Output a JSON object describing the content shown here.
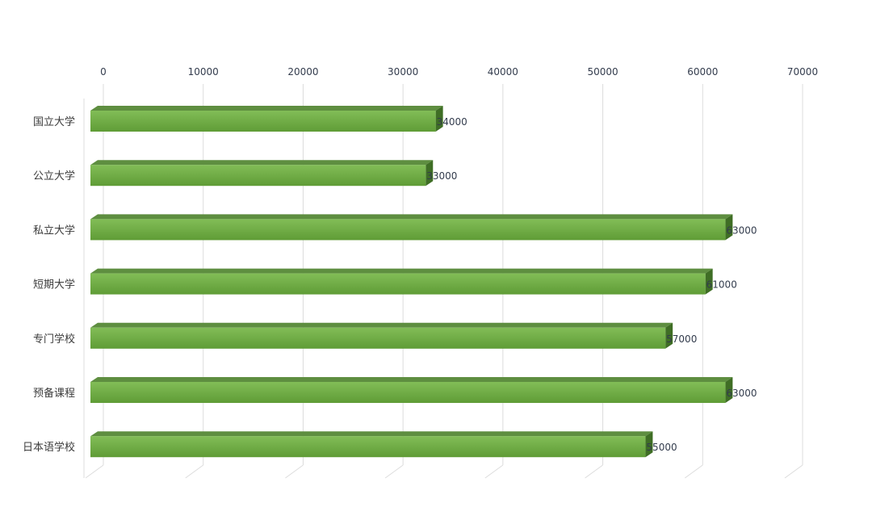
{
  "chart_data": {
    "type": "bar",
    "orientation": "horizontal",
    "style": "3d",
    "title": "",
    "xlabel": "",
    "ylabel": "",
    "categories": [
      "国立大学",
      "公立大学",
      "私立大学",
      "短期大学",
      "专门学校",
      "预备课程",
      "日本语学校"
    ],
    "values": [
      34000,
      33000,
      63000,
      61000,
      57000,
      63000,
      55000
    ],
    "xlim": [
      0,
      70000
    ],
    "x_ticks": [
      0,
      10000,
      20000,
      30000,
      40000,
      50000,
      60000,
      70000
    ],
    "x_axis_position": "top",
    "grid": true,
    "legend": "none",
    "data_labels": true,
    "colors": {
      "bar_front_top": "#82bd57",
      "bar_front_bottom": "#5f9c36",
      "bar_top_face": "#5e8e40",
      "bar_side_face": "#3f6e25",
      "grid": "#dcdcdc",
      "tick_text": "#333c4d",
      "label_text": "#3b3b3b"
    }
  }
}
